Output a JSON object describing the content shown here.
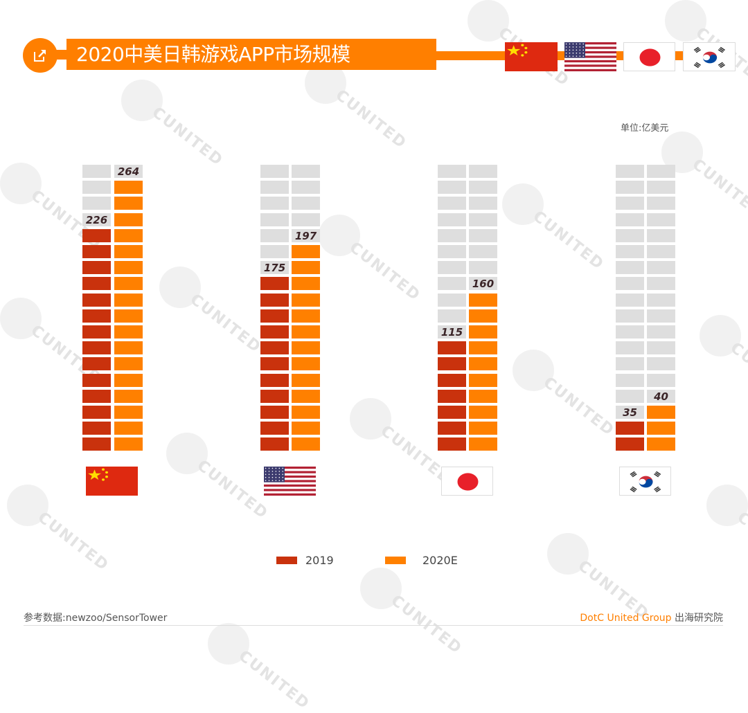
{
  "header": {
    "title": "2020中美日韩游戏APP市场规模",
    "icon": "external-link-icon",
    "flags": [
      "china-flag",
      "usa-flag",
      "japan-flag",
      "korea-flag"
    ]
  },
  "unit_label": "单位:亿美元",
  "legend": [
    {
      "label": "2019",
      "color": "#c9320d"
    },
    {
      "label": "2020E",
      "color": "#ff8000"
    }
  ],
  "footer": {
    "source": "参考数据:newzoo/SensorTower",
    "brand": "DotC United Group",
    "brand_suffix": "出海研究院"
  },
  "colors": {
    "accent": "#ff7f00",
    "series_2019": "#c9320d",
    "series_2020": "#ff8000",
    "empty_cell": "#dedede"
  },
  "chart_data": {
    "type": "bar",
    "title": "2020中美日韩游戏APP市场规模",
    "unit": "亿美元",
    "categories": [
      "China",
      "USA",
      "Japan",
      "Korea"
    ],
    "category_icons": [
      "china-flag",
      "usa-flag",
      "japan-flag",
      "korea-flag"
    ],
    "series": [
      {
        "name": "2019",
        "values": [
          226,
          175,
          115,
          35
        ],
        "filled_blocks": [
          14,
          11,
          7,
          2
        ]
      },
      {
        "name": "2020E",
        "values": [
          264,
          197,
          160,
          40
        ],
        "filled_blocks": [
          17,
          13,
          10,
          3
        ]
      }
    ],
    "grid_rows": 18,
    "legend_position": "bottom",
    "grid": false
  }
}
